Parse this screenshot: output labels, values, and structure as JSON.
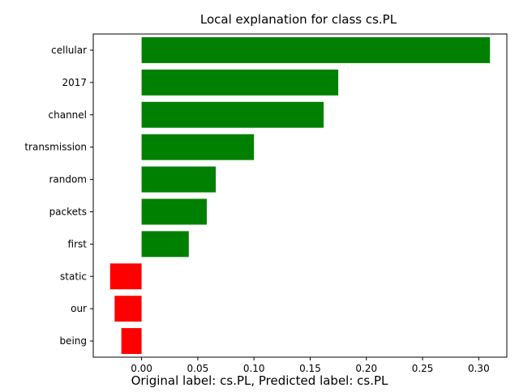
{
  "chart_data": {
    "type": "bar",
    "orientation": "horizontal",
    "title": "Local explanation for class cs.PL",
    "caption": "Original label: cs.PL, Predicted label: cs.PL",
    "categories": [
      "cellular",
      "2017",
      "channel",
      "transmission",
      "random",
      "packets",
      "first",
      "static",
      "our",
      "being"
    ],
    "values": [
      0.31,
      0.175,
      0.162,
      0.1,
      0.066,
      0.058,
      0.042,
      -0.028,
      -0.024,
      -0.018
    ],
    "xlim": [
      -0.043,
      0.325
    ],
    "xticks": [
      0.0,
      0.05,
      0.1,
      0.15,
      0.2,
      0.25,
      0.3
    ],
    "xtick_labels": [
      "0.00",
      "0.05",
      "0.10",
      "0.15",
      "0.20",
      "0.25",
      "0.30"
    ],
    "xlabel": "",
    "ylabel": "",
    "grid": false,
    "legend": "none",
    "colors": {
      "positive": "#008000",
      "negative": "#ff0000"
    }
  }
}
